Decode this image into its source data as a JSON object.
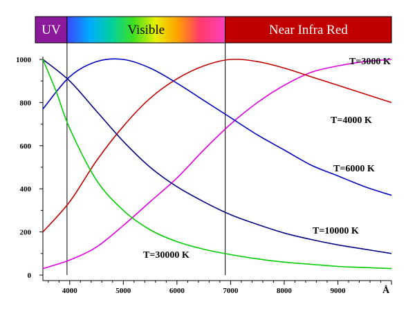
{
  "chart_data": {
    "type": "line",
    "xlabel": "Å",
    "ylabel": "",
    "xlim": [
      3500,
      10000
    ],
    "ylim": [
      0,
      1000
    ],
    "x_ticks": [
      4000,
      5000,
      6000,
      7000,
      8000,
      9000
    ],
    "y_ticks": [
      0,
      200,
      400,
      600,
      800,
      1000
    ],
    "grid": false,
    "bands": [
      {
        "label": "UV",
        "from": 3500,
        "to": 3950,
        "color": "#8b1a9a"
      },
      {
        "label": "Visible",
        "from": 3950,
        "to": 6900,
        "color": "spectrum"
      },
      {
        "label": "Near Infra Red",
        "from": 6900,
        "to": 10000,
        "color": "#c00000"
      }
    ],
    "series": [
      {
        "name": "T=3000 K",
        "color": "#e000e0",
        "label_anchor": [
          3500,
          1000
        ],
        "x": [
          3500,
          4000,
          4500,
          5000,
          5500,
          6000,
          6500,
          7000,
          7500,
          8000,
          8500,
          9000,
          9500,
          10000
        ],
        "y": [
          30,
          70,
          130,
          230,
          340,
          450,
          580,
          700,
          800,
          880,
          940,
          970,
          990,
          1000
        ]
      },
      {
        "name": "T=4000 K",
        "color": "#c00000",
        "label_anchor": [
          9650,
          740
        ],
        "x": [
          3500,
          4000,
          4500,
          5000,
          5500,
          6000,
          6500,
          7000,
          7500,
          8000,
          8500,
          9000,
          9500,
          10000
        ],
        "y": [
          200,
          340,
          530,
          690,
          820,
          910,
          970,
          1000,
          990,
          960,
          920,
          880,
          840,
          800
        ]
      },
      {
        "name": "T=6000 K",
        "color": "#0000c0",
        "label_anchor": [
          9300,
          520
        ],
        "x": [
          3500,
          4000,
          4500,
          5000,
          5500,
          6000,
          6500,
          7000,
          7500,
          8000,
          8500,
          9000,
          9500,
          10000
        ],
        "y": [
          770,
          920,
          990,
          1000,
          960,
          890,
          810,
          730,
          650,
          580,
          510,
          460,
          410,
          370
        ]
      },
      {
        "name": "T=10000 K",
        "color": "#000080",
        "label_anchor": [
          8500,
          185
        ],
        "x": [
          3500,
          4000,
          4500,
          5000,
          5500,
          6000,
          6500,
          7000,
          7500,
          8000,
          8500,
          9000,
          9500,
          10000
        ],
        "y": [
          1000,
          900,
          760,
          620,
          500,
          410,
          340,
          280,
          235,
          195,
          165,
          140,
          120,
          100
        ]
      },
      {
        "name": "T=30000 K",
        "color": "#00cc00",
        "label_anchor": [
          4000,
          130
        ],
        "x": [
          3500,
          3750,
          4000,
          4500,
          5000,
          5500,
          6000,
          6500,
          7000,
          7500,
          8000,
          8500,
          9000,
          9500,
          10000
        ],
        "y": [
          1000,
          850,
          680,
          440,
          300,
          210,
          155,
          120,
          95,
          75,
          60,
          50,
          40,
          35,
          30
        ]
      }
    ]
  }
}
